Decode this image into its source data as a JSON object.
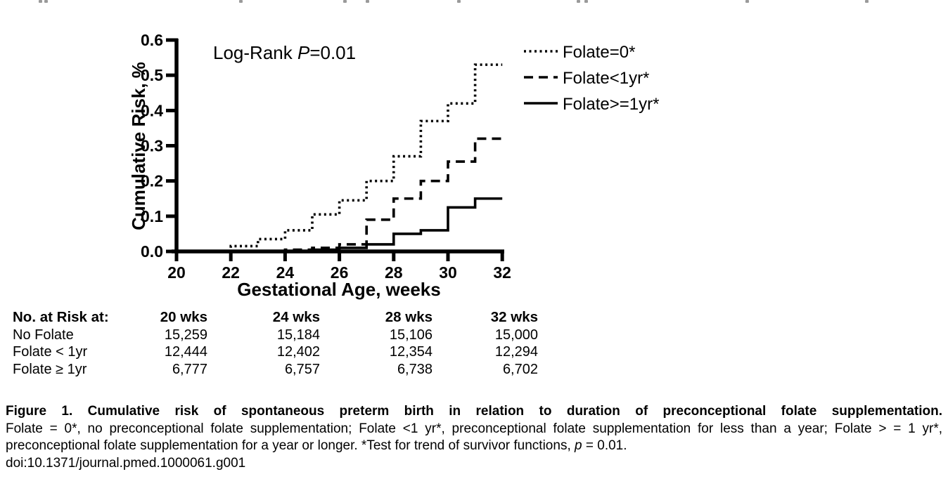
{
  "colors": {
    "ink": "#000000",
    "background": "#ffffff",
    "artifact_gray": "#9a9a9a"
  },
  "chart_data": {
    "type": "line",
    "subtype": "step",
    "note": "Kaplan-Meier style cumulative incidence curves; each y value holds from its x until the next listed x; final value holds to x=32",
    "xlabel": "Gestational Age, weeks",
    "ylabel": "Cumulative Risk, %",
    "xlim": [
      20,
      32
    ],
    "ylim": [
      0,
      0.6
    ],
    "xticks": [
      20,
      22,
      24,
      26,
      28,
      30,
      32
    ],
    "yticks": [
      0.0,
      0.1,
      0.2,
      0.3,
      0.4,
      0.5,
      0.6
    ],
    "grid": false,
    "legend_position": "top-right",
    "annotation": {
      "prefix": "Log-Rank ",
      "p": "P",
      "suffix": "=0.01"
    },
    "series": [
      {
        "name": "Folate=0*",
        "style": "dotted",
        "x": [
          20,
          22,
          23,
          24,
          25,
          26,
          27,
          28,
          29,
          30,
          31
        ],
        "y": [
          0,
          0.015,
          0.035,
          0.06,
          0.105,
          0.145,
          0.2,
          0.27,
          0.37,
          0.42,
          0.53
        ]
      },
      {
        "name": "Folate<1yr*",
        "style": "dashed",
        "x": [
          20,
          24,
          25,
          26,
          27,
          28,
          29,
          30,
          31
        ],
        "y": [
          0,
          0.005,
          0.01,
          0.02,
          0.09,
          0.15,
          0.2,
          0.255,
          0.32
        ]
      },
      {
        "name": "Folate>=1yr*",
        "style": "solid",
        "x": [
          20,
          25,
          26,
          27,
          28,
          29,
          30,
          31
        ],
        "y": [
          0,
          0.005,
          0.01,
          0.02,
          0.05,
          0.06,
          0.125,
          0.15
        ]
      }
    ]
  },
  "risk_table": {
    "title_col": "No. at Risk at:",
    "col_headers": [
      "20 wks",
      "24 wks",
      "28 wks",
      "32 wks"
    ],
    "rows": [
      {
        "label": "No Folate",
        "values": [
          "15,259",
          "15,184",
          "15,106",
          "15,000"
        ]
      },
      {
        "label": "Folate < 1yr",
        "values": [
          "12,444",
          "12,402",
          "12,354",
          "12,294"
        ]
      },
      {
        "label": "Folate ≥ 1yr",
        "values": [
          "6,777",
          "6,757",
          "6,738",
          "6,702"
        ]
      }
    ]
  },
  "caption": {
    "bold": "Figure 1. Cumulative risk of spontaneous preterm birth in relation to duration of preconceptional folate supplementation.",
    "body_before_p": "Folate = 0*, no preconceptional folate supplementation; Folate <1 yr*, preconceptional folate supplementation for less than a year; Folate > = 1 yr*, preconceptional folate supplementation for a year or longer. *Test for trend of survivor functions, ",
    "p_italic": "p",
    "body_after_p": " = 0.01.",
    "doi": "doi:10.1371/journal.pmed.1000061.g001"
  }
}
